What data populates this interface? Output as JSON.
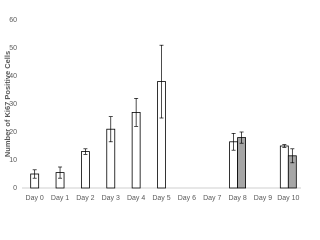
{
  "chart_data": {
    "type": "bar",
    "y_label": "Number of Ki67 Positive Cells",
    "categories": [
      "Day 0",
      "Day 1",
      "Day 2",
      "Day 3",
      "Day 4",
      "Day 5",
      "Day 6",
      "Day 7",
      "Day 8",
      "Day 9",
      "Day 10"
    ],
    "series": [
      {
        "color": "#ffffff",
        "values": [
          5,
          5.5,
          13,
          21,
          27,
          38,
          null,
          null,
          16.5,
          null,
          15
        ],
        "errors": [
          1.5,
          2,
          1,
          4.5,
          5,
          13,
          null,
          null,
          3,
          null,
          0.5
        ]
      },
      {
        "color": "#a6a6a6",
        "values": [
          null,
          null,
          null,
          null,
          null,
          null,
          null,
          null,
          18,
          null,
          11.5
        ],
        "errors": [
          null,
          null,
          null,
          null,
          null,
          null,
          null,
          null,
          2,
          null,
          2.5
        ]
      }
    ],
    "ylim": [
      0,
      60
    ],
    "yticks": [
      0,
      10,
      20,
      30,
      40,
      50,
      60
    ],
    "grid": false
  }
}
